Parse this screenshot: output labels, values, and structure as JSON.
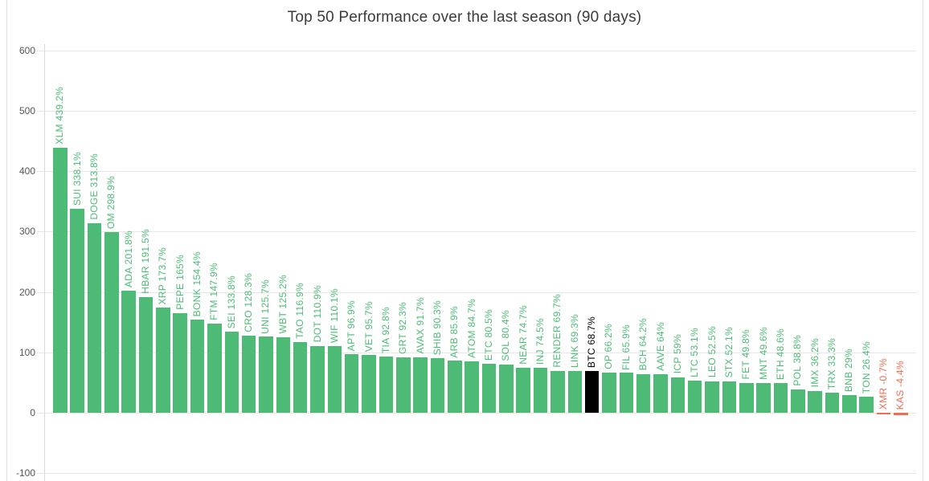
{
  "chart_data": {
    "type": "bar",
    "title": "Top 50 Performance over the last season (90 days)",
    "xlabel": "",
    "ylabel": "",
    "ylim": [
      -100,
      600
    ],
    "yticks": [
      600,
      500,
      400,
      300,
      200,
      100,
      0,
      -100
    ],
    "grid": "horizontal",
    "legend": "none",
    "bar_label_style": "rotated-90-above-bar",
    "colors": {
      "positive": "#4dbb75",
      "negative": "#f06e55",
      "highlight": "#000000",
      "grid": "#e7e7e7",
      "axis": "#d9d9d9",
      "tick_text": "#555555",
      "title_text": "#3b3b3b"
    },
    "points": [
      {
        "symbol": "XLM",
        "value": 439.2,
        "label": "XLM 439.2%"
      },
      {
        "symbol": "SUI",
        "value": 338.1,
        "label": "SUI 338.1%"
      },
      {
        "symbol": "DOGE",
        "value": 313.8,
        "label": "DOGE 313.8%"
      },
      {
        "symbol": "OM",
        "value": 298.9,
        "label": "OM 298.9%"
      },
      {
        "symbol": "ADA",
        "value": 201.8,
        "label": "ADA 201.8%"
      },
      {
        "symbol": "HBAR",
        "value": 191.5,
        "label": "HBAR 191.5%"
      },
      {
        "symbol": "XRP",
        "value": 173.7,
        "label": "XRP 173.7%"
      },
      {
        "symbol": "PEPE",
        "value": 165,
        "label": "PEPE 165%"
      },
      {
        "symbol": "BONK",
        "value": 154.4,
        "label": "BONK 154.4%"
      },
      {
        "symbol": "FTM",
        "value": 147.9,
        "label": "FTM 147.9%"
      },
      {
        "symbol": "SEI",
        "value": 133.8,
        "label": "SEI 133.8%"
      },
      {
        "symbol": "CRO",
        "value": 128.3,
        "label": "CRO 128.3%"
      },
      {
        "symbol": "UNI",
        "value": 125.7,
        "label": "UNI 125.7%"
      },
      {
        "symbol": "WBT",
        "value": 125.2,
        "label": "WBT 125.2%"
      },
      {
        "symbol": "TAO",
        "value": 116.9,
        "label": "TAO 116.9%"
      },
      {
        "symbol": "DOT",
        "value": 110.9,
        "label": "DOT 110.9%"
      },
      {
        "symbol": "WIF",
        "value": 110.1,
        "label": "WIF 110.1%"
      },
      {
        "symbol": "APT",
        "value": 96.9,
        "label": "APT 96.9%"
      },
      {
        "symbol": "VET",
        "value": 95.7,
        "label": "VET 95.7%"
      },
      {
        "symbol": "TIA",
        "value": 92.8,
        "label": "TIA 92.8%"
      },
      {
        "symbol": "GRT",
        "value": 92.3,
        "label": "GRT 92.3%"
      },
      {
        "symbol": "AVAX",
        "value": 91.7,
        "label": "AVAX 91.7%"
      },
      {
        "symbol": "SHIB",
        "value": 90.3,
        "label": "SHIB 90.3%"
      },
      {
        "symbol": "ARB",
        "value": 85.9,
        "label": "ARB 85.9%"
      },
      {
        "symbol": "ATOM",
        "value": 84.7,
        "label": "ATOM 84.7%"
      },
      {
        "symbol": "ETC",
        "value": 80.5,
        "label": "ETC 80.5%"
      },
      {
        "symbol": "SOL",
        "value": 80.4,
        "label": "SOL 80.4%"
      },
      {
        "symbol": "NEAR",
        "value": 74.7,
        "label": "NEAR 74.7%"
      },
      {
        "symbol": "INJ",
        "value": 74.5,
        "label": "INJ 74.5%"
      },
      {
        "symbol": "RENDER",
        "value": 69.7,
        "label": "RENDER 69.7%"
      },
      {
        "symbol": "LINK",
        "value": 69.3,
        "label": "LINK 69.3%"
      },
      {
        "symbol": "BTC",
        "value": 68.7,
        "label": "BTC 68.7%",
        "role": "highlight"
      },
      {
        "symbol": "OP",
        "value": 66.2,
        "label": "OP 66.2%"
      },
      {
        "symbol": "FIL",
        "value": 65.9,
        "label": "FIL 65.9%"
      },
      {
        "symbol": "BCH",
        "value": 64.2,
        "label": "BCH 64.2%"
      },
      {
        "symbol": "AAVE",
        "value": 64,
        "label": "AAVE 64%"
      },
      {
        "symbol": "ICP",
        "value": 59,
        "label": "ICP 59%"
      },
      {
        "symbol": "LTC",
        "value": 53.1,
        "label": "LTC 53.1%"
      },
      {
        "symbol": "LEO",
        "value": 52.5,
        "label": "LEO 52.5%"
      },
      {
        "symbol": "STX",
        "value": 52.1,
        "label": "STX 52.1%"
      },
      {
        "symbol": "FET",
        "value": 49.8,
        "label": "FET 49.8%"
      },
      {
        "symbol": "MNT",
        "value": 49.6,
        "label": "MNT 49.6%"
      },
      {
        "symbol": "ETH",
        "value": 48.6,
        "label": "ETH 48.6%"
      },
      {
        "symbol": "POL",
        "value": 38.8,
        "label": "POL 38.8%"
      },
      {
        "symbol": "IMX",
        "value": 36.2,
        "label": "IMX 36.2%"
      },
      {
        "symbol": "TRX",
        "value": 33.3,
        "label": "TRX 33.3%"
      },
      {
        "symbol": "BNB",
        "value": 29,
        "label": "BNB 29%"
      },
      {
        "symbol": "TON",
        "value": 26.4,
        "label": "TON 26.4%"
      },
      {
        "symbol": "XMR",
        "value": -0.7,
        "label": "XMR -0.7%"
      },
      {
        "symbol": "KAS",
        "value": -4.4,
        "label": "KAS -4.4%"
      }
    ]
  }
}
